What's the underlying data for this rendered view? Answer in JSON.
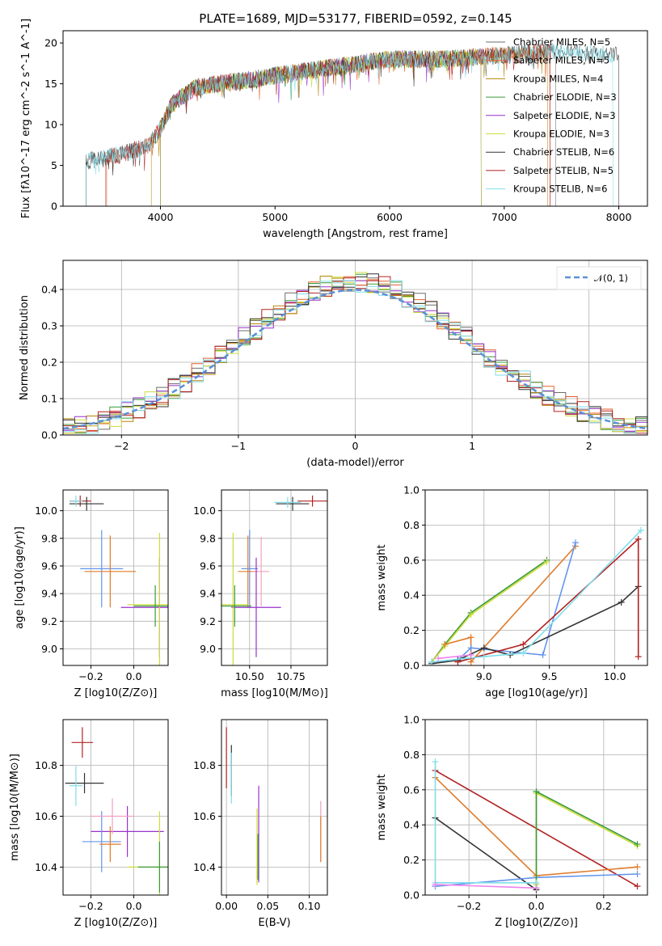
{
  "figure": {
    "title": "PLATE=1689, MJD=53177, FIBERID=0592, z=0.145"
  },
  "palette": [
    "#6d6d6d",
    "#e4612c",
    "#b8860b",
    "#3a9a3a",
    "#9932cc",
    "#cddc39",
    "#333333",
    "#b22222",
    "#80deea",
    "#6495ed",
    "#ee82ee",
    "#e07b2a",
    "#f0a0c0"
  ],
  "chart_data": [
    {
      "panel": "spectrum",
      "type": "line",
      "title": "PLATE=1689, MJD=53177, FIBERID=0592, z=0.145",
      "xlabel": "wavelength [Angstrom, rest frame]",
      "ylabel": "Flux [fλ10^-17 erg cm^-2 s^-1 A^-1]",
      "xlim": [
        3150,
        8250
      ],
      "ylim": [
        0,
        21.5
      ],
      "xticks": [
        4000,
        5000,
        6000,
        7000,
        8000
      ],
      "yticks": [
        0,
        5,
        10,
        15,
        20
      ],
      "grid": false,
      "legend_position": "right",
      "continuum": {
        "x": [
          3300,
          3500,
          3700,
          3900,
          4000,
          4100,
          4300,
          4500,
          4800,
          5000,
          5500,
          6000,
          6500,
          7000,
          7500,
          8000
        ],
        "y": [
          5.5,
          5.8,
          6.5,
          7.5,
          9.5,
          12.5,
          14.5,
          15.0,
          15.5,
          16.0,
          17.0,
          18.0,
          18.0,
          18.5,
          19.0,
          18.5
        ]
      },
      "series": [
        {
          "name": "Chabrier MILES, N_SSP=5",
          "color": "#6d6d6d",
          "x": [
            3350,
            7450
          ]
        },
        {
          "name": "Salpeter MILES, N_SSP=5",
          "color": "#e4612c",
          "x": [
            3520,
            7400
          ]
        },
        {
          "name": "Kroupa MILES, N_SSP=4",
          "color": "#b8860b",
          "x": [
            3920,
            7380
          ]
        },
        {
          "name": "Chabrier ELODIE, N_SSP=3",
          "color": "#3a9a3a",
          "x": [
            4000,
            6800
          ]
        },
        {
          "name": "Salpeter ELODIE, N_SSP=3",
          "color": "#9932cc",
          "x": [
            4000,
            6800
          ]
        },
        {
          "name": "Kroupa ELODIE, N_SSP=3",
          "color": "#cddc39",
          "x": [
            4000,
            6800
          ]
        },
        {
          "name": "Chabrier STELIB, N_SSP=6",
          "color": "#333333",
          "x": [
            3350,
            8000
          ]
        },
        {
          "name": "Salpeter STELIB, N_SSP=5",
          "color": "#b22222",
          "x": [
            3530,
            7400
          ]
        },
        {
          "name": "Kroupa STELIB, N_SSP=6",
          "color": "#80deea",
          "x": [
            3350,
            7950
          ]
        }
      ]
    },
    {
      "panel": "residual_distribution",
      "type": "histogram",
      "xlabel": "(data-model)/error",
      "ylabel": "Normed distribution",
      "xlim": [
        -2.5,
        2.5
      ],
      "ylim": [
        0,
        0.48
      ],
      "xticks": [
        -2,
        -1,
        0,
        1,
        2
      ],
      "yticks": [
        0.0,
        0.1,
        0.2,
        0.3,
        0.4
      ],
      "grid": true,
      "legend_position": "top-right",
      "reference": {
        "name": "𝒩(0, 1)",
        "color": "#5b8fd6",
        "style": "dashed",
        "mu": 0,
        "sigma": 1
      },
      "bins": {
        "start": -2.5,
        "width": 0.1,
        "count": 50
      }
    },
    {
      "panel": "age_vs_Z",
      "type": "errorbar",
      "xlabel": "Z [log10(Z/Z⊙)]",
      "ylabel": "age [log10(age/yr)]",
      "xlim": [
        -0.33,
        0.16
      ],
      "ylim": [
        8.88,
        10.15
      ],
      "xticks": [
        -0.2,
        0.0
      ],
      "yticks": [
        9.0,
        9.2,
        9.4,
        9.6,
        9.8,
        10.0
      ],
      "grid": true,
      "points": [
        {
          "color": "#b22222",
          "x": -0.25,
          "y": 10.07,
          "xerr": 0.05,
          "yerr": 0.04
        },
        {
          "color": "#333333",
          "x": -0.22,
          "y": 10.05,
          "xerr": 0.08,
          "yerr": 0.05
        },
        {
          "color": "#80deea",
          "x": -0.27,
          "y": 10.07,
          "xerr": 0.03,
          "yerr": 0.04
        },
        {
          "color": "#6495ed",
          "x": -0.15,
          "y": 9.58,
          "xerr": 0.1,
          "yerr": 0.28
        },
        {
          "color": "#e07b2a",
          "x": -0.11,
          "y": 9.56,
          "xerr": 0.12,
          "yerr": 0.26
        },
        {
          "color": "#9932cc",
          "x": 0.12,
          "y": 9.3,
          "xerr": 0.18,
          "yerr": 0.36
        },
        {
          "color": "#cddc39",
          "x": 0.12,
          "y": 9.32,
          "xerr": 0.15,
          "yerr": 0.52
        },
        {
          "color": "#3a9a3a",
          "x": 0.1,
          "y": 9.31,
          "xerr": 0.1,
          "yerr": 0.15
        }
      ]
    },
    {
      "panel": "age_vs_mass",
      "type": "errorbar",
      "xlabel": "mass [log10(M/M⊙)]",
      "ylabel": "",
      "xlim": [
        10.33,
        10.97
      ],
      "ylim": [
        8.88,
        10.15
      ],
      "xticks": [
        10.5,
        10.75
      ],
      "yticks": [
        9.0,
        9.2,
        9.4,
        9.6,
        9.8,
        10.0
      ],
      "grid": true,
      "points": [
        {
          "color": "#b22222",
          "x": 10.88,
          "y": 10.07,
          "xerr": 0.09,
          "yerr": 0.04
        },
        {
          "color": "#333333",
          "x": 10.76,
          "y": 10.05,
          "xerr": 0.1,
          "yerr": 0.05
        },
        {
          "color": "#80deea",
          "x": 10.73,
          "y": 10.06,
          "xerr": 0.08,
          "yerr": 0.04
        },
        {
          "color": "#6495ed",
          "x": 10.5,
          "y": 9.58,
          "xerr": 0.05,
          "yerr": 0.28
        },
        {
          "color": "#e07b2a",
          "x": 10.49,
          "y": 9.56,
          "xerr": 0.06,
          "yerr": 0.26
        },
        {
          "color": "#f0a0c0",
          "x": 10.57,
          "y": 9.56,
          "xerr": 0.05,
          "yerr": 0.25
        },
        {
          "color": "#9932cc",
          "x": 10.54,
          "y": 9.3,
          "xerr": 0.15,
          "yerr": 0.36
        },
        {
          "color": "#cddc39",
          "x": 10.4,
          "y": 9.32,
          "xerr": 0.09,
          "yerr": 0.52
        },
        {
          "color": "#3a9a3a",
          "x": 10.41,
          "y": 9.31,
          "xerr": 0.1,
          "yerr": 0.15
        }
      ]
    },
    {
      "panel": "mass_weight_vs_age",
      "type": "line",
      "xlabel": "age [log10(age/yr)]",
      "ylabel": "mass weight",
      "xlim": [
        8.55,
        10.25
      ],
      "ylim": [
        0,
        1.0
      ],
      "xticks": [
        9.0,
        9.5,
        10.0
      ],
      "yticks": [
        0.0,
        0.2,
        0.4,
        0.6,
        0.8,
        1.0
      ],
      "grid": true,
      "series": [
        {
          "color": "#3a9a3a",
          "x": [
            8.6,
            8.7,
            8.9,
            9.48
          ],
          "y": [
            0.02,
            0.12,
            0.3,
            0.6
          ]
        },
        {
          "color": "#cddc39",
          "x": [
            8.6,
            8.7,
            8.9,
            9.48
          ],
          "y": [
            0.02,
            0.11,
            0.29,
            0.59
          ]
        },
        {
          "color": "#e07b2a",
          "x": [
            8.7,
            8.9,
            8.9,
            9.7
          ],
          "y": [
            0.12,
            0.16,
            0.02,
            0.68
          ]
        },
        {
          "color": "#6495ed",
          "x": [
            8.6,
            8.8,
            8.9,
            9.45,
            9.7
          ],
          "y": [
            0.02,
            0.03,
            0.1,
            0.06,
            0.7
          ]
        },
        {
          "color": "#333333",
          "x": [
            8.6,
            8.8,
            9.0,
            9.2,
            10.05,
            10.18
          ],
          "y": [
            0.01,
            0.03,
            0.1,
            0.06,
            0.36,
            0.45
          ]
        },
        {
          "color": "#b22222",
          "x": [
            8.8,
            9.3,
            10.18,
            10.18
          ],
          "y": [
            0.02,
            0.12,
            0.72,
            0.05
          ]
        },
        {
          "color": "#80deea",
          "x": [
            8.6,
            9.0,
            9.3,
            10.2
          ],
          "y": [
            0.02,
            0.05,
            0.07,
            0.77
          ]
        },
        {
          "color": "#ee82ee",
          "x": [
            8.65,
            8.9
          ],
          "y": [
            0.04,
            0.06
          ]
        }
      ]
    },
    {
      "panel": "mass_vs_Z",
      "type": "errorbar",
      "xlabel": "Z [log10(Z/Z⊙)]",
      "ylabel": "mass [log10(M/M⊙)]",
      "xlim": [
        -0.33,
        0.16
      ],
      "ylim": [
        10.29,
        10.98
      ],
      "xticks": [
        -0.2,
        0.0
      ],
      "yticks": [
        10.4,
        10.6,
        10.8
      ],
      "grid": true,
      "points": [
        {
          "color": "#b22222",
          "x": -0.24,
          "y": 10.89,
          "xerr": 0.05,
          "yerr": 0.06
        },
        {
          "color": "#333333",
          "x": -0.23,
          "y": 10.73,
          "xerr": 0.09,
          "yerr": 0.04
        },
        {
          "color": "#80deea",
          "x": -0.27,
          "y": 10.72,
          "xerr": 0.03,
          "yerr": 0.08
        },
        {
          "color": "#9932cc",
          "x": -0.03,
          "y": 10.54,
          "xerr": 0.17,
          "yerr": 0.1
        },
        {
          "color": "#6495ed",
          "x": -0.15,
          "y": 10.5,
          "xerr": 0.09,
          "yerr": 0.12
        },
        {
          "color": "#f0a0c0",
          "x": -0.1,
          "y": 10.6,
          "xerr": 0.1,
          "yerr": 0.07
        },
        {
          "color": "#e07b2a",
          "x": -0.11,
          "y": 10.49,
          "xerr": 0.05,
          "yerr": 0.07
        },
        {
          "color": "#cddc39",
          "x": 0.12,
          "y": 10.4,
          "xerr": 0.15,
          "yerr": 0.22
        },
        {
          "color": "#3a9a3a",
          "x": 0.12,
          "y": 10.4,
          "xerr": 0.1,
          "yerr": 0.1
        }
      ]
    },
    {
      "panel": "mass_vs_EBV",
      "type": "errorbar",
      "xlabel": "E(B-V)",
      "ylabel": "",
      "xlim": [
        -0.006,
        0.122
      ],
      "ylim": [
        10.29,
        10.98
      ],
      "xticks": [
        0.0,
        0.05,
        0.1
      ],
      "yticks": [
        10.4,
        10.6,
        10.8
      ],
      "grid": true,
      "points": [
        {
          "color": "#b22222",
          "x": 0.0,
          "y": 10.83,
          "yerr": 0.12
        },
        {
          "color": "#333333",
          "x": 0.006,
          "y": 10.78,
          "yerr": 0.1
        },
        {
          "color": "#80deea",
          "x": 0.006,
          "y": 10.75,
          "yerr": 0.1
        },
        {
          "color": "#9932cc",
          "x": 0.039,
          "y": 10.53,
          "yerr": 0.19
        },
        {
          "color": "#3a9a3a",
          "x": 0.038,
          "y": 10.44,
          "yerr": 0.09
        },
        {
          "color": "#cddc39",
          "x": 0.037,
          "y": 10.48,
          "yerr": 0.15
        },
        {
          "color": "#f0a0c0",
          "x": 0.114,
          "y": 10.54,
          "yerr": 0.12
        },
        {
          "color": "#e07b2a",
          "x": 0.114,
          "y": 10.51,
          "yerr": 0.09
        }
      ]
    },
    {
      "panel": "mass_weight_vs_Z",
      "type": "line",
      "xlabel": "Z [log10(Z/Z⊙)]",
      "ylabel": "mass weight",
      "xlim": [
        -0.33,
        0.33
      ],
      "ylim": [
        0,
        1.0
      ],
      "xticks": [
        -0.2,
        0.0,
        0.2
      ],
      "yticks": [
        0.0,
        0.2,
        0.4,
        0.6,
        0.8,
        1.0
      ],
      "grid": true,
      "series": [
        {
          "color": "#b22222",
          "x": [
            -0.3,
            0.3
          ],
          "y": [
            0.71,
            0.05
          ]
        },
        {
          "color": "#333333",
          "x": [
            -0.3,
            0.0
          ],
          "y": [
            0.44,
            0.03
          ]
        },
        {
          "color": "#e07b2a",
          "x": [
            -0.3,
            0.0,
            0.3
          ],
          "y": [
            0.67,
            0.11,
            0.16
          ]
        },
        {
          "color": "#6495ed",
          "x": [
            -0.3,
            0.0,
            0.3
          ],
          "y": [
            0.05,
            0.1,
            0.12
          ]
        },
        {
          "color": "#cddc39",
          "x": [
            0.0,
            0.0,
            0.3
          ],
          "y": [
            0.06,
            0.58,
            0.28
          ]
        },
        {
          "color": "#3a9a3a",
          "x": [
            0.0,
            0.0,
            0.3
          ],
          "y": [
            0.04,
            0.59,
            0.29
          ]
        },
        {
          "color": "#80deea",
          "x": [
            -0.3,
            -0.3,
            0.0
          ],
          "y": [
            0.76,
            0.07,
            0.07
          ]
        },
        {
          "color": "#ee82ee",
          "x": [
            -0.3,
            0.0
          ],
          "y": [
            0.06,
            0.04
          ]
        }
      ]
    }
  ]
}
